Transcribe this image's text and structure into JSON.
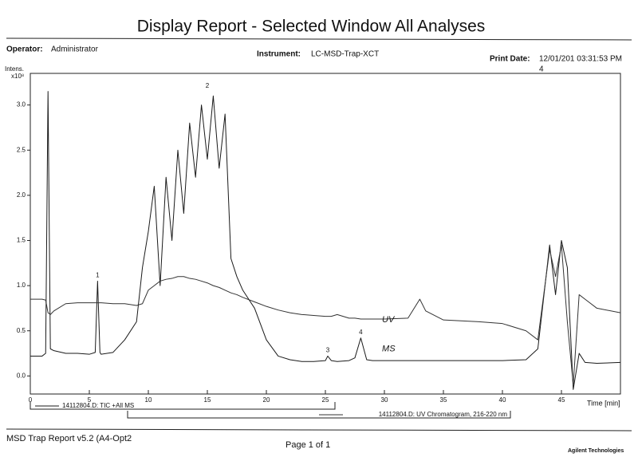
{
  "header": {
    "title": "Display Report - Selected Window All Analyses",
    "operator_label": "Operator:",
    "operator": "Administrator",
    "instrument_label": "Instrument:",
    "instrument": "LC-MSD-Trap-XCT",
    "print_date_label": "Print Date:",
    "print_date": "12/01/201 03:31:53 PM",
    "print_date_wrap": "4"
  },
  "chart_data": {
    "type": "line",
    "y_label": "Intens.",
    "y_unit": "x10⁸",
    "x_label": "Time [min]",
    "x": [
      0,
      1,
      1.3,
      1.5,
      1.7,
      2,
      3,
      4,
      5,
      5.5,
      5.7,
      5.9,
      6,
      7,
      8,
      9,
      9.5,
      10,
      10.5,
      11,
      11.5,
      12,
      12.5,
      13,
      13.5,
      14,
      14.5,
      15,
      15.5,
      16,
      16.5,
      17,
      17.5,
      18,
      19,
      20,
      21,
      22,
      23,
      24,
      25,
      25.2,
      25.5,
      26,
      27,
      27.5,
      28,
      28.5,
      29,
      30,
      32,
      33,
      33.5,
      35,
      38,
      40,
      42,
      43,
      44,
      44.5,
      45,
      45.5,
      46,
      46.5,
      47,
      48,
      50
    ],
    "series": [
      {
        "name": "14112804.D: TIC +All MS",
        "color": "#1a1a1a",
        "values": [
          0.22,
          0.22,
          0.25,
          3.15,
          0.3,
          0.28,
          0.25,
          0.25,
          0.24,
          0.26,
          1.05,
          0.26,
          0.24,
          0.26,
          0.4,
          0.6,
          1.2,
          1.6,
          2.1,
          1.0,
          2.2,
          1.5,
          2.5,
          1.8,
          2.8,
          2.2,
          3.0,
          2.4,
          3.1,
          2.3,
          2.9,
          1.3,
          1.1,
          0.95,
          0.75,
          0.4,
          0.22,
          0.18,
          0.16,
          0.16,
          0.17,
          0.22,
          0.17,
          0.16,
          0.17,
          0.2,
          0.42,
          0.18,
          0.17,
          0.17,
          0.17,
          0.17,
          0.17,
          0.17,
          0.17,
          0.17,
          0.18,
          0.3,
          1.45,
          0.9,
          1.5,
          1.2,
          -0.15,
          0.25,
          0.15,
          0.14,
          0.15
        ]
      },
      {
        "name": "14112804.D: UV Chromatogram, 216-220 nm",
        "color": "#333333",
        "values": [
          0.85,
          0.85,
          0.84,
          0.7,
          0.68,
          0.72,
          0.8,
          0.81,
          0.81,
          0.81,
          0.81,
          0.81,
          0.81,
          0.8,
          0.8,
          0.78,
          0.8,
          0.95,
          1.0,
          1.05,
          1.07,
          1.08,
          1.1,
          1.1,
          1.08,
          1.07,
          1.05,
          1.03,
          1.0,
          0.98,
          0.95,
          0.92,
          0.9,
          0.87,
          0.82,
          0.77,
          0.73,
          0.7,
          0.68,
          0.67,
          0.66,
          0.66,
          0.66,
          0.68,
          0.64,
          0.64,
          0.63,
          0.63,
          0.63,
          0.63,
          0.64,
          0.85,
          0.72,
          0.62,
          0.6,
          0.58,
          0.5,
          0.4,
          1.4,
          1.1,
          1.45,
          0.6,
          -0.1,
          0.9,
          0.85,
          0.75,
          0.7
        ]
      }
    ],
    "xlim": [
      0,
      50
    ],
    "xticks": [
      0,
      5,
      10,
      15,
      20,
      25,
      30,
      35,
      40,
      45
    ],
    "ylim": [
      -0.2,
      3.35
    ],
    "yticks": [
      {
        "value": 0,
        "label": "0.0"
      },
      0.5,
      {
        "value": 1,
        "label": "1.0"
      },
      1.5,
      {
        "value": 2,
        "label": "2.0"
      },
      2.5,
      {
        "value": 3,
        "label": "3.0"
      }
    ],
    "grid": false,
    "annotations": [
      {
        "text": "1",
        "x": 5.7,
        "y": 1.05
      },
      {
        "text": "2",
        "x": 15,
        "y": 3.15
      },
      {
        "text": "3",
        "x": 25.2,
        "y": 0.22
      },
      {
        "text": "4",
        "x": 28,
        "y": 0.42
      }
    ],
    "handwritten": [
      {
        "text": "UV",
        "x": 29.8,
        "y": 0.62
      },
      {
        "text": "MS",
        "x": 29.8,
        "y": 0.3
      }
    ]
  },
  "footer": {
    "report": "MSD Trap Report v5.2 (A4-Opt2",
    "page": "Page 1 of 1",
    "brand": "Agilent Technologies"
  }
}
